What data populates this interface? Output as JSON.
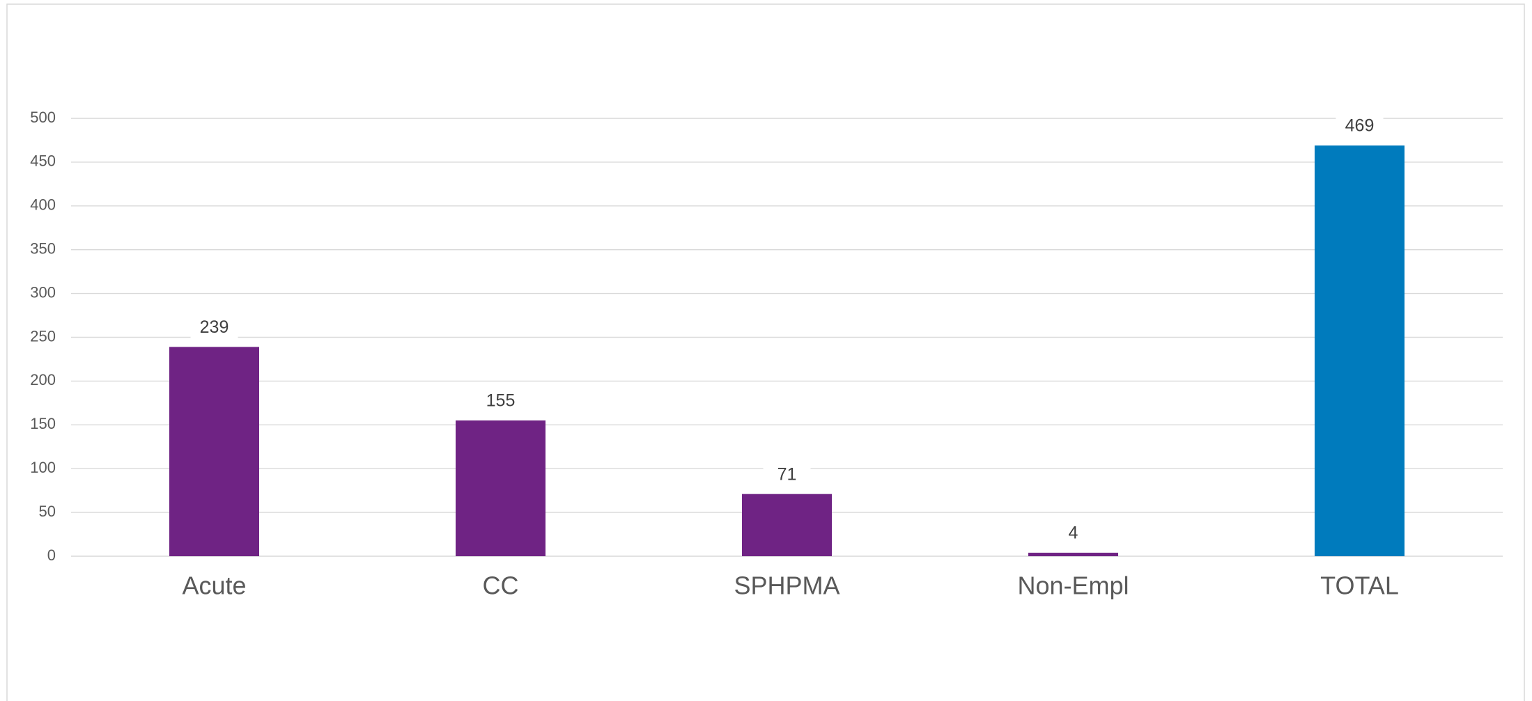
{
  "chart_data": {
    "type": "bar",
    "categories": [
      "Acute",
      "CC",
      "SPHPMA",
      "Non-Empl",
      "TOTAL"
    ],
    "values": [
      239,
      155,
      71,
      4,
      469
    ],
    "colors": [
      "#6f2384",
      "#6f2384",
      "#6f2384",
      "#6f2384",
      "#007bbd"
    ],
    "ylim": [
      0,
      500
    ],
    "yticks": [
      0,
      50,
      100,
      150,
      200,
      250,
      300,
      350,
      400,
      450,
      500
    ],
    "grid": true
  }
}
